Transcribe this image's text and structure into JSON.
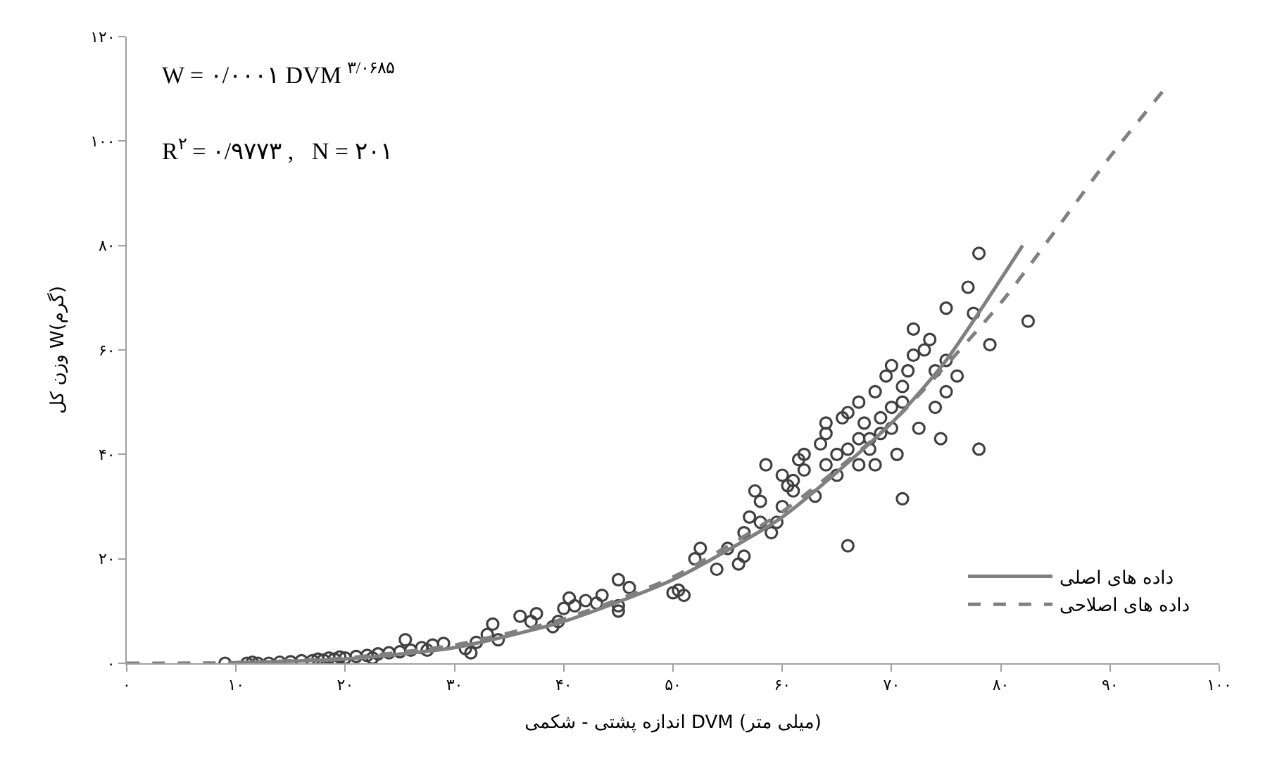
{
  "chart_data": {
    "type": "scatter",
    "xlabel": "اندازه پشتی - شکمی DVM (میلی متر)",
    "ylabel": "وزن کل W(گرم)",
    "annotations": [
      "W = ۰/۰۰۰۱ DVM $^{۳/۰۶۸۵}$",
      "R$^{۲}$ = ۰/۹۷۷۳ ,   N = ۲۰۱"
    ],
    "xlim": [
      0,
      100
    ],
    "ylim": [
      0,
      120
    ],
    "xticks": [
      {
        "value": 0,
        "label": "۰"
      },
      {
        "value": 10,
        "label": "۱۰"
      },
      {
        "value": 20,
        "label": "۲۰"
      },
      {
        "value": 30,
        "label": "۳۰"
      },
      {
        "value": 40,
        "label": "۴۰"
      },
      {
        "value": 50,
        "label": "۵۰"
      },
      {
        "value": 60,
        "label": "۶۰"
      },
      {
        "value": 70,
        "label": "۷۰"
      },
      {
        "value": 80,
        "label": "۸۰"
      },
      {
        "value": 90,
        "label": "۹۰"
      },
      {
        "value": 100,
        "label": "۱۰۰"
      }
    ],
    "yticks": [
      {
        "value": 0,
        "label": "۰"
      },
      {
        "value": 20,
        "label": "۲۰"
      },
      {
        "value": 40,
        "label": "۴۰"
      },
      {
        "value": 60,
        "label": "۶۰"
      },
      {
        "value": 80,
        "label": "۸۰"
      },
      {
        "value": 100,
        "label": "۱۰۰"
      },
      {
        "value": 120,
        "label": "۱۲۰"
      }
    ],
    "grid": false,
    "legend": "bottom right",
    "series": [
      {
        "marker": "circle",
        "color": "#404040",
        "x": [
          9,
          11,
          11.5,
          12,
          13,
          14,
          15,
          16,
          17,
          17.5,
          18,
          18.5,
          19,
          19.5,
          20,
          21,
          22,
          22.5,
          23,
          24,
          25,
          25.5,
          26,
          27,
          27.5,
          28,
          29,
          31,
          31.5,
          32,
          33,
          33.5,
          34,
          36,
          37,
          37.5,
          39,
          39.5,
          40,
          40.5,
          41,
          42,
          43,
          43.5,
          45,
          45,
          45,
          46,
          50,
          50.5,
          51,
          52,
          52.5,
          54,
          55,
          56,
          56.5,
          56.5,
          57,
          57.5,
          58,
          58,
          58.5,
          59,
          59.5,
          60,
          60,
          60.5,
          61,
          61,
          61.5,
          62,
          62,
          63,
          63.5,
          64,
          64,
          64,
          65,
          65,
          65.5,
          66,
          66,
          66,
          67,
          67,
          67,
          67.5,
          68,
          68,
          68.5,
          68.5,
          69,
          69,
          69.5,
          70,
          70,
          70,
          70.5,
          71,
          71,
          71,
          71.5,
          72,
          72,
          72.5,
          73,
          73.5,
          74,
          74,
          74.5,
          75,
          75,
          75,
          76,
          77,
          77.5,
          78,
          78,
          79,
          82.5
        ],
        "values": [
          0,
          0,
          0.2,
          0,
          0,
          0.2,
          0.3,
          0.5,
          0.5,
          0.8,
          0.6,
          1,
          0.8,
          1.2,
          1,
          1.3,
          1.5,
          1,
          1.8,
          2,
          2.2,
          4.5,
          2.5,
          3,
          2.5,
          3.5,
          3.8,
          2.8,
          2,
          4,
          5.5,
          7.5,
          4.5,
          9,
          8,
          9.5,
          7,
          8,
          10.5,
          12.5,
          11,
          12,
          11.5,
          13,
          16,
          10,
          11,
          14.5,
          13.5,
          14,
          13,
          20,
          22,
          18,
          22,
          19,
          20.5,
          25,
          28,
          33,
          31,
          27,
          38,
          25,
          27,
          30,
          36,
          34,
          35,
          33,
          39,
          37,
          40,
          32,
          42,
          38,
          44,
          46,
          36,
          40,
          47,
          48,
          22.5,
          41,
          43,
          50,
          38,
          46,
          41,
          43,
          38,
          52,
          47,
          44,
          55,
          57,
          45,
          49,
          40,
          31.5,
          50,
          53,
          56,
          59,
          64,
          45,
          60,
          62,
          56,
          49,
          43,
          52,
          68,
          58,
          55,
          72,
          67,
          78.5,
          41,
          61,
          65.5
        ]
      },
      {
        "type": "line",
        "name": "داده های اصلی",
        "color": "#808080",
        "line_style": "solid",
        "marker": "none",
        "x": [
          10,
          20,
          30,
          40,
          50,
          60,
          70,
          75,
          82
        ],
        "values": [
          0.1,
          0.8,
          3,
          8,
          16,
          28,
          46,
          58,
          80
        ]
      },
      {
        "type": "line",
        "name": "داده های اصلاحی",
        "color": "#808080",
        "line_style": "dashed",
        "marker": "none",
        "x": [
          0,
          10,
          20,
          30,
          40,
          50,
          60,
          70,
          80,
          90,
          95
        ],
        "values": [
          0,
          0.1,
          1,
          3.5,
          8.5,
          16.5,
          29,
          46,
          69,
          97,
          110
        ]
      }
    ]
  }
}
